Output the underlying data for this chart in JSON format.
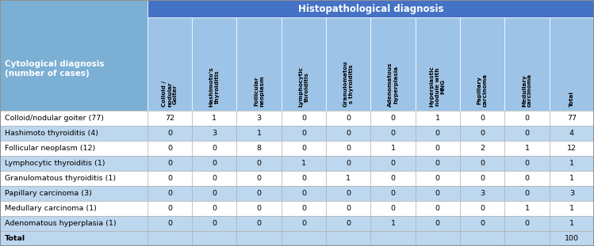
{
  "title": "Histopathological diagnosis",
  "col_header_label": "Cytological diagnosis\n(number of cases)",
  "col_headers": [
    "Colloid /\nnodular\nGoiter",
    "Hashimoto's\nthyroiditis",
    "Follicular\nneoplasm",
    "Lymphocytic\nthroiditis",
    "Granulomatou\ns thyroiditis",
    "Adenomatous\nhyperplasia",
    "Hyperplastic\nnodule with\nMNG",
    "Papillary\ncarcinoma",
    "Medullary\ncarcinoma",
    "Total"
  ],
  "row_headers": [
    "Colloid/nodular goiter (77)",
    "Hashimoto thyroiditis (4)",
    "Follicular neoplasm (12)",
    "Lymphocytic thyroiditis (1)",
    "Granulomatous thyroiditis (1)",
    "Papillary carcinoma (3)",
    "Medullary carcinoma (1)",
    "Adenomatous hyperplasia (1)",
    "Total"
  ],
  "table_data": [
    [
      72,
      1,
      3,
      0,
      0,
      0,
      1,
      0,
      0,
      77
    ],
    [
      0,
      3,
      1,
      0,
      0,
      0,
      0,
      0,
      0,
      4
    ],
    [
      0,
      0,
      8,
      0,
      0,
      1,
      0,
      2,
      1,
      12
    ],
    [
      0,
      0,
      0,
      1,
      0,
      0,
      0,
      0,
      0,
      1
    ],
    [
      0,
      0,
      0,
      0,
      1,
      0,
      0,
      0,
      0,
      1
    ],
    [
      0,
      0,
      0,
      0,
      0,
      0,
      0,
      3,
      0,
      3
    ],
    [
      0,
      0,
      0,
      0,
      0,
      0,
      0,
      0,
      1,
      1
    ],
    [
      0,
      0,
      0,
      0,
      0,
      1,
      0,
      0,
      0,
      1
    ],
    [
      "",
      "",
      "",
      "",
      "",
      "",
      "",
      "",
      "",
      100
    ]
  ],
  "header_bg": "#4472C4",
  "subheader_bg": "#9DC3E6",
  "row_odd_bg": "#FFFFFF",
  "row_even_bg": "#BDD7EE",
  "total_row_bg": "#BDD7EE",
  "left_col_bg": "#7BAFD4",
  "header_text_color": "#FFFFFF",
  "cell_text_color": "#000000"
}
